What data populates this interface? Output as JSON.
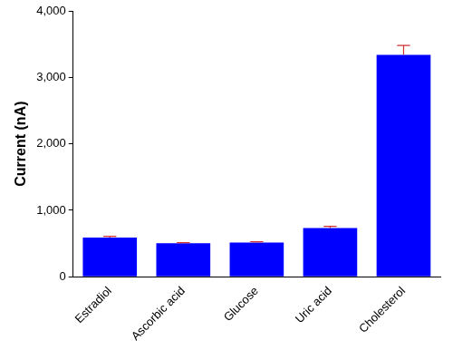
{
  "chart_data": {
    "type": "bar",
    "y_label": "Current (nA)",
    "categories": [
      "Estradiol",
      "Ascorbic acid",
      "Glucose",
      "Uric acid",
      "Cholesterol"
    ],
    "values": [
      590,
      505,
      515,
      735,
      3340
    ],
    "errors": [
      20,
      8,
      12,
      25,
      140
    ],
    "color": "#0000ff",
    "ylim": [
      0,
      4000
    ],
    "yticks": [
      0,
      {
        "value": 1000,
        "label": "1,000"
      },
      {
        "value": 2000,
        "label": "2,000"
      },
      {
        "value": 3000,
        "label": "3,000"
      },
      {
        "value": 4000,
        "label": "4,000"
      }
    ],
    "grid": false
  }
}
